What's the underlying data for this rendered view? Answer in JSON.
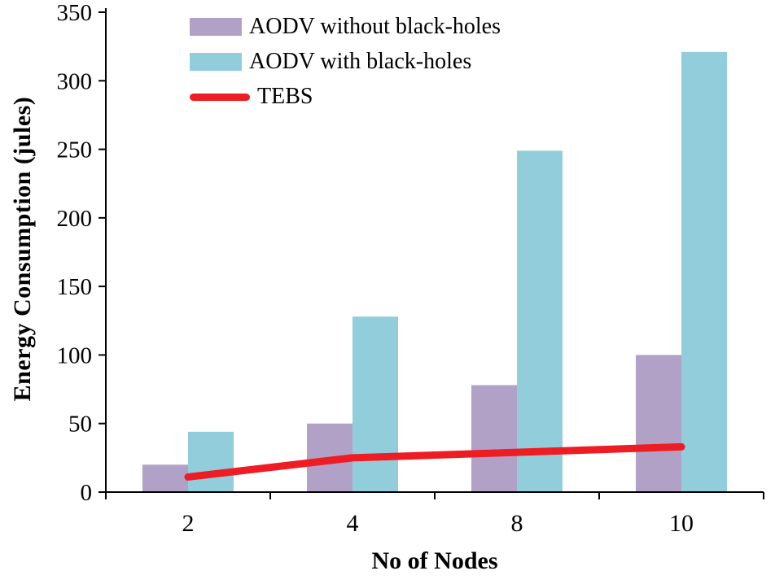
{
  "chart_data": {
    "type": "bar",
    "title": "",
    "categories": [
      "2",
      "4",
      "8",
      "10"
    ],
    "series": [
      {
        "name": "AODV without black-holes",
        "type": "bar",
        "color": "#b2a1c7",
        "values": [
          20,
          50,
          78,
          100
        ]
      },
      {
        "name": "AODV with black-holes",
        "type": "bar",
        "color": "#92cddc",
        "values": [
          44,
          128,
          249,
          321
        ]
      },
      {
        "name": "TEBS",
        "type": "line",
        "color": "#ee1c23",
        "values": [
          11,
          25,
          29,
          33
        ]
      }
    ],
    "xlabel": "No of Nodes",
    "ylabel": "Energy Consumption (jules)",
    "ylim": [
      0,
      350
    ],
    "ytick_step": 50,
    "yticks": [
      0,
      50,
      100,
      150,
      200,
      250,
      300,
      350
    ],
    "grid": false,
    "legend_position": "top-left-inside"
  },
  "colors": {
    "axis": "#000000",
    "text": "#000000",
    "background": "#ffffff"
  }
}
